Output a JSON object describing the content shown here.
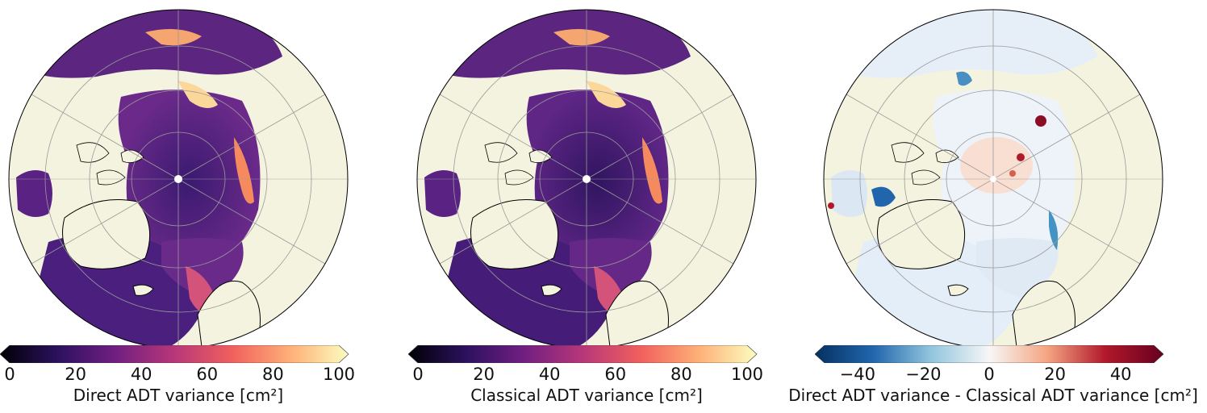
{
  "panels": [
    {
      "id": "direct",
      "colormap": "magma",
      "colorbar": {
        "label": "Direct ADT variance [cm²]",
        "ticks": [
          "0",
          "20",
          "40",
          "60",
          "80",
          "100"
        ],
        "tick_values": [
          0,
          20,
          40,
          60,
          80,
          100
        ],
        "range": [
          0,
          100
        ],
        "colors": [
          "#000004",
          "#2c115f",
          "#721f81",
          "#b73779",
          "#f1605d",
          "#feb078",
          "#fcfdbf"
        ]
      }
    },
    {
      "id": "classical",
      "colormap": "magma",
      "colorbar": {
        "label": "Classical ADT variance [cm²]",
        "ticks": [
          "0",
          "20",
          "40",
          "60",
          "80",
          "100"
        ],
        "tick_values": [
          0,
          20,
          40,
          60,
          80,
          100
        ],
        "range": [
          0,
          100
        ],
        "colors": [
          "#000004",
          "#2c115f",
          "#721f81",
          "#b73779",
          "#f1605d",
          "#feb078",
          "#fcfdbf"
        ]
      }
    },
    {
      "id": "difference",
      "colormap": "RdBu_r",
      "colorbar": {
        "label": "Direct ADT variance - Classical ADT variance [cm²]",
        "ticks": [
          "−40",
          "−20",
          "0",
          "20",
          "40"
        ],
        "tick_values": [
          -40,
          -20,
          0,
          20,
          40
        ],
        "range": [
          -50,
          50
        ],
        "colors": [
          "#053061",
          "#2166ac",
          "#92c5de",
          "#f7f7f7",
          "#f4a582",
          "#b2182b",
          "#67001f"
        ]
      }
    }
  ],
  "colors": {
    "land": "#f4f3df",
    "ocean_direct": "#5a2a86",
    "ocean_classical": "#4f2582",
    "ocean_difference": "#e9f1f9",
    "coast": "#000000",
    "grid": "#9a9a9a"
  }
}
